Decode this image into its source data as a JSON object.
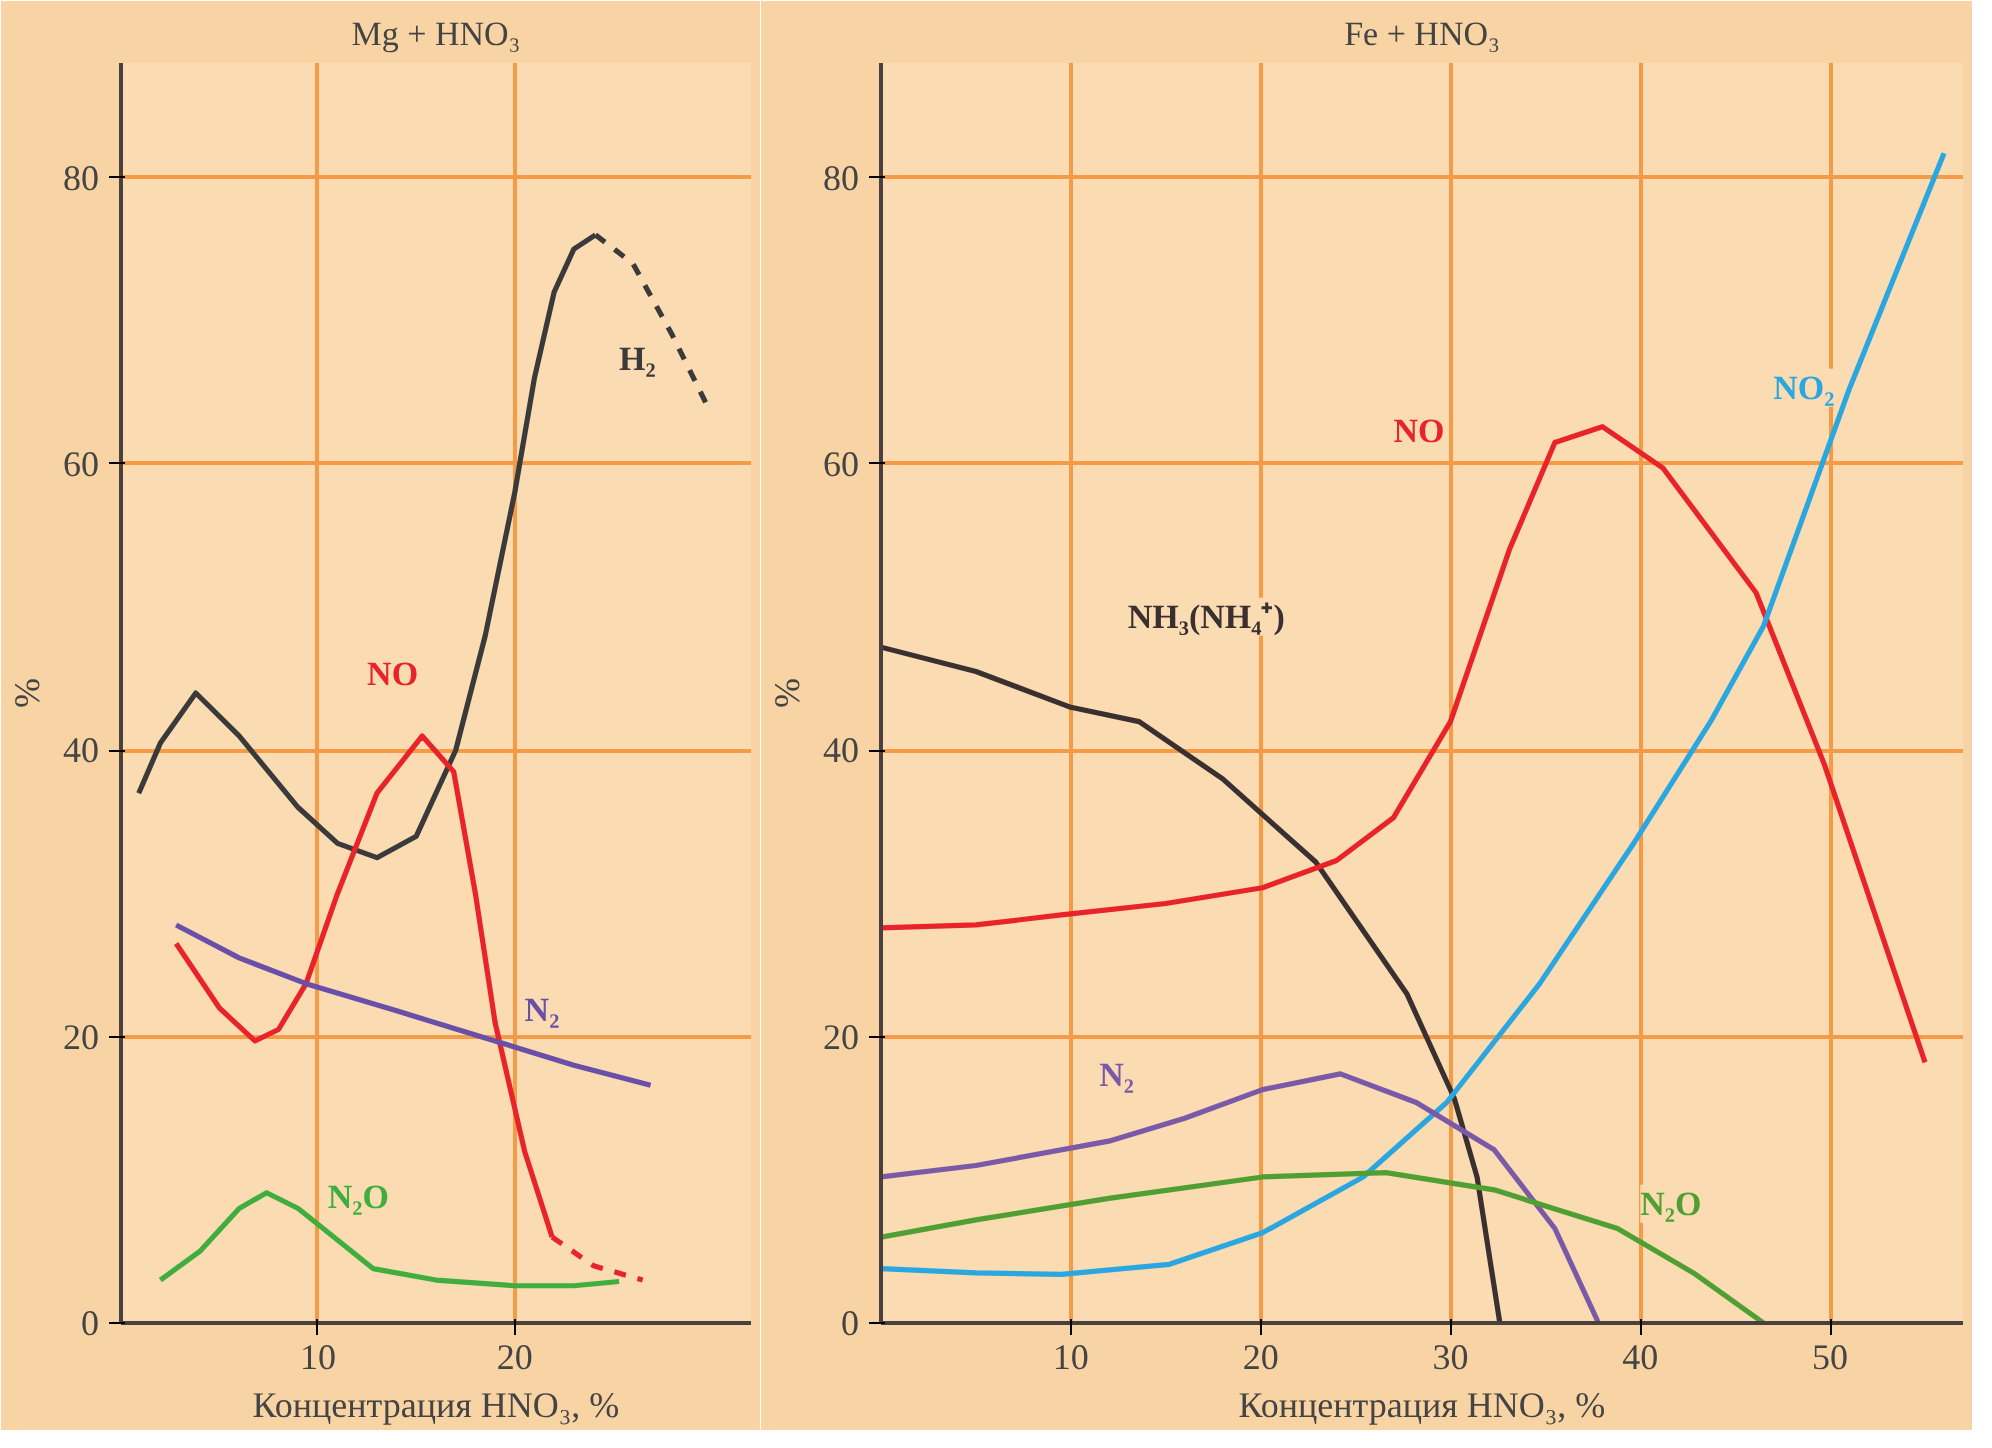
{
  "chart_data": [
    {
      "type": "line",
      "title": "Mg + HNO₃",
      "xlabel": "Концентрация HNO₃, %",
      "ylabel": "%",
      "xlim": [
        0,
        32
      ],
      "ylim": [
        0,
        88
      ],
      "xticks": [
        10,
        20
      ],
      "yticks": [
        0,
        20,
        40,
        60,
        80
      ],
      "grid": true,
      "marker": "none",
      "line_style": "solid",
      "series": [
        {
          "name": "H₂",
          "color": "#3a3a3a",
          "x": [
            0.9,
            2,
            3.8,
            6,
            9,
            11,
            13,
            15,
            17,
            18.5,
            20,
            21,
            22,
            23,
            24.1
          ],
          "values": [
            37,
            40.5,
            44,
            41,
            36,
            33.5,
            32.5,
            34,
            40,
            48,
            58,
            66,
            72,
            75,
            76
          ]
        },
        {
          "color": "#3a3a3a",
          "line_style": "dashed",
          "x": [
            24.1,
            26,
            28,
            29.8
          ],
          "values": [
            76,
            74,
            69,
            64
          ]
        },
        {
          "name": "NO",
          "color": "#e8242a",
          "x": [
            2.8,
            5,
            6.8,
            8,
            9.4,
            11,
            13,
            15.3,
            16.9,
            18,
            19,
            20.5,
            21.9
          ],
          "values": [
            26.5,
            22,
            19.7,
            20.5,
            23.7,
            30,
            37,
            41,
            38.5,
            30,
            21,
            12,
            6
          ]
        },
        {
          "color": "#e8242a",
          "line_style": "dashed",
          "x": [
            21.9,
            24,
            26.5
          ],
          "values": [
            6,
            4,
            3
          ]
        },
        {
          "name": "N₂",
          "color": "#6a4fa8",
          "x": [
            2.8,
            6,
            9.4,
            14,
            19,
            23,
            26.9
          ],
          "values": [
            27.8,
            25.5,
            23.7,
            21.8,
            19.7,
            18,
            16.6
          ]
        },
        {
          "name": "N₂O",
          "color": "#3fae3f",
          "x": [
            2,
            4,
            6,
            7.4,
            9,
            10,
            12.8,
            16,
            20,
            23,
            25.3
          ],
          "values": [
            3,
            5,
            8,
            9.1,
            8,
            6.9,
            3.8,
            3,
            2.6,
            2.6,
            2.9
          ]
        }
      ]
    },
    {
      "type": "line",
      "title": "Fe + HNO₃",
      "xlabel": "Концентрация HNO₃, %",
      "ylabel": "%",
      "xlim": [
        0,
        57
      ],
      "ylim": [
        0,
        88
      ],
      "xticks": [
        10,
        20,
        30,
        40,
        50
      ],
      "yticks": [
        0,
        20,
        40,
        60,
        80
      ],
      "grid": true,
      "marker": "none",
      "line_style": "solid",
      "series": [
        {
          "name": "NH₃(NH₄⁺)",
          "color": "#3a3030",
          "x": [
            0,
            5,
            10,
            13.6,
            18,
            22.9,
            27.7,
            30.2,
            31.4,
            32.6
          ],
          "values": [
            47.2,
            45.5,
            43,
            42,
            38,
            32.2,
            23,
            15.7,
            10.2,
            0
          ]
        },
        {
          "name": "NO",
          "color": "#e8242a",
          "x": [
            0,
            5,
            9.5,
            15,
            20.1,
            24,
            27,
            30,
            33.1,
            35.5,
            38,
            41.2,
            46.1,
            49.7,
            55
          ],
          "values": [
            27.6,
            27.8,
            28.5,
            29.3,
            30.4,
            32.3,
            35.3,
            42,
            54,
            61.5,
            62.6,
            59.7,
            51,
            39,
            18.2
          ]
        },
        {
          "name": "NO₂",
          "color": "#2aa6e0",
          "x": [
            0,
            5,
            9.5,
            15.2,
            20.1,
            25.4,
            29.8,
            34.7,
            39.6,
            43.7,
            46.5,
            51,
            56
          ],
          "values": [
            3.8,
            3.5,
            3.4,
            4.1,
            6.3,
            10.2,
            15.4,
            23.7,
            33.4,
            42,
            48.7,
            65.2,
            81.7
          ]
        },
        {
          "name": "N₂",
          "color": "#7a5aa8",
          "x": [
            0,
            5,
            12,
            16,
            20.1,
            24.2,
            28.2,
            32.3,
            35.5,
            37.8
          ],
          "values": [
            10.2,
            11,
            12.7,
            14.3,
            16.3,
            17.4,
            15.4,
            12.1,
            6.6,
            0
          ]
        },
        {
          "name": "N₂O",
          "color": "#4f9f33",
          "x": [
            0,
            5,
            12,
            20.1,
            26.6,
            32.3,
            38.8,
            42.8,
            46.5
          ],
          "values": [
            6,
            7.2,
            8.7,
            10.2,
            10.5,
            9.3,
            6.6,
            3.5,
            0
          ]
        }
      ]
    }
  ]
}
